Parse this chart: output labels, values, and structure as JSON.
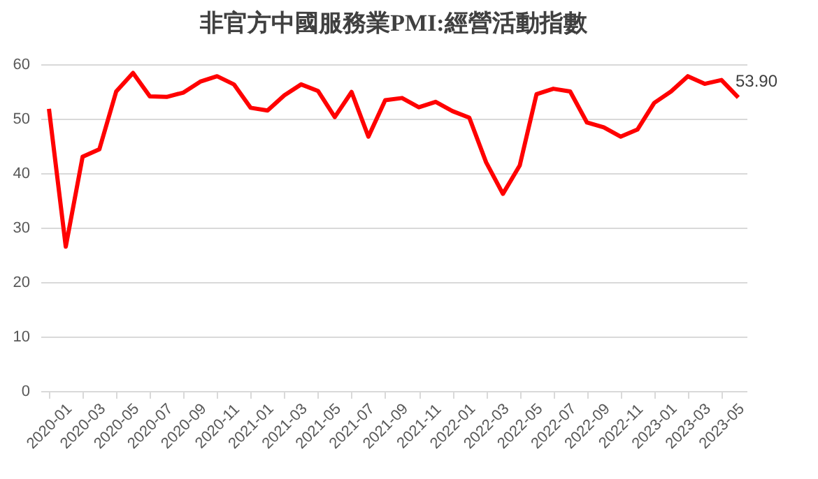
{
  "chart_data": {
    "type": "line",
    "title": "非官方中國服務業PMI:經營活動指數",
    "categories": [
      "2020-01",
      null,
      "2020-03",
      null,
      "2020-05",
      null,
      "2020-07",
      null,
      "2020-09",
      null,
      "2020-11",
      null,
      "2021-01",
      null,
      "2021-03",
      null,
      "2021-05",
      null,
      "2021-07",
      null,
      "2021-09",
      null,
      "2021-11",
      null,
      "2022-01",
      null,
      "2022-03",
      null,
      "2022-05",
      null,
      "2022-07",
      null,
      "2022-09",
      null,
      "2022-11",
      null,
      "2023-01",
      null,
      "2023-03",
      null,
      "2023-05",
      null
    ],
    "series": [
      {
        "color": "#ff0000",
        "values": [
          51.8,
          26.5,
          43.0,
          44.4,
          55.0,
          58.4,
          54.1,
          54.0,
          54.8,
          56.8,
          57.8,
          56.3,
          52.0,
          51.5,
          54.3,
          56.3,
          55.1,
          50.3,
          54.9,
          46.7,
          53.4,
          53.8,
          52.1,
          53.1,
          51.4,
          50.2,
          42.0,
          36.2,
          41.4,
          54.5,
          55.5,
          55.0,
          49.3,
          48.4,
          46.7,
          48.0,
          52.9,
          55.0,
          57.8,
          56.4,
          57.1,
          53.9
        ],
        "value_labels": [
          null,
          null,
          null,
          null,
          null,
          null,
          null,
          null,
          null,
          null,
          null,
          null,
          null,
          null,
          null,
          null,
          null,
          null,
          null,
          null,
          null,
          null,
          null,
          null,
          null,
          null,
          null,
          null,
          null,
          null,
          null,
          null,
          null,
          null,
          null,
          null,
          null,
          null,
          null,
          null,
          null,
          "53.90"
        ]
      }
    ],
    "ylim": [
      0,
      60
    ],
    "yticks": [
      0,
      10,
      20,
      30,
      40,
      50,
      60
    ],
    "grid": "y",
    "marker": "none",
    "line_style": "solid"
  }
}
